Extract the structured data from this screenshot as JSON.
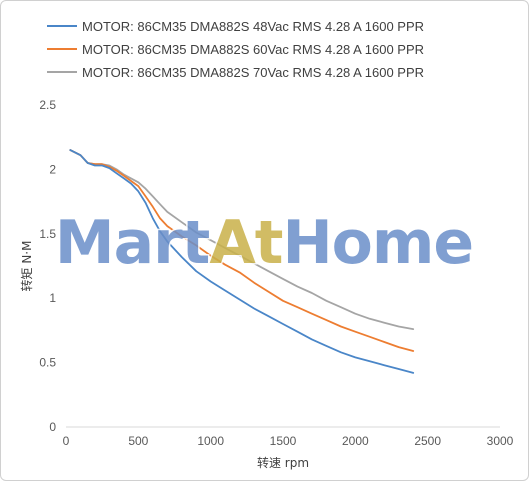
{
  "chart_data": {
    "type": "line",
    "title": "",
    "xlabel": "转速 rpm",
    "ylabel": "转矩 N·M",
    "xlim": [
      0,
      3000
    ],
    "ylim": [
      0,
      2.5
    ],
    "xticks": [
      "0",
      "500",
      "1000",
      "1500",
      "2000",
      "2500",
      "3000"
    ],
    "yticks": [
      "0",
      "0.5",
      "1",
      "1.5",
      "2",
      "2.5"
    ],
    "grid": false,
    "legend_position": "top",
    "series": [
      {
        "name": "MOTOR: 86CM35 DMA882S 48Vac  RMS  4.28 A  1600 PPR",
        "color": "#4a86c8",
        "x": [
          30,
          100,
          150,
          200,
          250,
          300,
          350,
          400,
          450,
          500,
          550,
          600,
          650,
          700,
          800,
          900,
          1000,
          1100,
          1200,
          1300,
          1400,
          1500,
          1600,
          1700,
          1800,
          1900,
          2000,
          2100,
          2200,
          2300,
          2400
        ],
        "y": [
          2.15,
          2.11,
          2.05,
          2.03,
          2.03,
          2.01,
          1.97,
          1.93,
          1.89,
          1.83,
          1.74,
          1.62,
          1.52,
          1.44,
          1.32,
          1.21,
          1.13,
          1.06,
          0.99,
          0.92,
          0.86,
          0.8,
          0.74,
          0.68,
          0.63,
          0.58,
          0.54,
          0.51,
          0.48,
          0.45,
          0.42
        ]
      },
      {
        "name": "MOTOR: 86CM35 DMA882S 60Vac  RMS  4.28 A  1600 PPR",
        "color": "#ed7d31",
        "x": [
          30,
          100,
          150,
          200,
          250,
          300,
          350,
          400,
          450,
          500,
          550,
          600,
          650,
          700,
          800,
          900,
          1000,
          1100,
          1200,
          1300,
          1400,
          1500,
          1600,
          1700,
          1800,
          1900,
          2000,
          2100,
          2200,
          2300,
          2400
        ],
        "y": [
          2.15,
          2.11,
          2.05,
          2.04,
          2.04,
          2.02,
          1.99,
          1.95,
          1.91,
          1.87,
          1.79,
          1.71,
          1.62,
          1.56,
          1.48,
          1.41,
          1.33,
          1.26,
          1.2,
          1.12,
          1.05,
          0.98,
          0.93,
          0.88,
          0.83,
          0.78,
          0.74,
          0.7,
          0.66,
          0.62,
          0.59
        ]
      },
      {
        "name": "MOTOR: 86CM35 DMA882S 70Vac  RMS  4.28 A  1600 PPR",
        "color": "#a5a5a5",
        "x": [
          30,
          100,
          150,
          200,
          250,
          300,
          350,
          400,
          450,
          500,
          550,
          600,
          650,
          700,
          800,
          900,
          1000,
          1100,
          1200,
          1300,
          1400,
          1500,
          1600,
          1700,
          1800,
          1900,
          2000,
          2100,
          2200,
          2300,
          2400
        ],
        "y": [
          2.15,
          2.11,
          2.05,
          2.04,
          2.04,
          2.03,
          2.0,
          1.96,
          1.93,
          1.9,
          1.85,
          1.79,
          1.73,
          1.67,
          1.59,
          1.51,
          1.45,
          1.39,
          1.33,
          1.27,
          1.21,
          1.15,
          1.09,
          1.04,
          0.98,
          0.93,
          0.88,
          0.84,
          0.81,
          0.78,
          0.76
        ]
      }
    ]
  },
  "watermark": {
    "text": "MartAtHome",
    "color_main": "#6b8fc9",
    "color_accent": "#c9b14a"
  }
}
